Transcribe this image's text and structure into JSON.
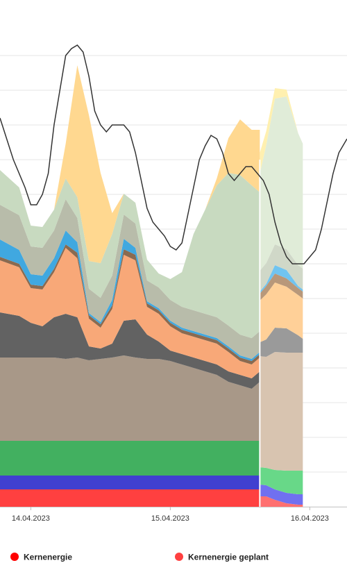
{
  "chart_data": {
    "type": "area",
    "stacked": true,
    "x_unit": "hours",
    "x_ticks": [
      {
        "label": "14.04.2023",
        "hour": 0
      },
      {
        "label": "15.04.2023",
        "hour": 24
      },
      {
        "label": "16.04.2023",
        "hour": 48
      }
    ],
    "xlim": [
      -5.3,
      54.4
    ],
    "ylim": [
      0,
      70
    ],
    "grid": true,
    "plan_start_hour": 39.4,
    "plan_end_hour": 46.8,
    "x": [
      -5.3,
      -2,
      0,
      2,
      4,
      6,
      8,
      10,
      12,
      14,
      16,
      18,
      20,
      22,
      24,
      26,
      28,
      30,
      32,
      34,
      36,
      38,
      39.4
    ],
    "series": [
      {
        "name": "Kernenergie",
        "color": "#ff4040",
        "values": [
          2.5,
          2.5,
          2.5,
          2.5,
          2.5,
          2.5,
          2.5,
          2.5,
          2.5,
          2.5,
          2.5,
          2.5,
          2.5,
          2.5,
          2.5,
          2.5,
          2.5,
          2.5,
          2.5,
          2.5,
          2.5,
          2.5,
          2.5
        ]
      },
      {
        "color": "#4040d0",
        "values": [
          2,
          2,
          2,
          2,
          2,
          2,
          2,
          2,
          2,
          2,
          2,
          2,
          2,
          2,
          2,
          2,
          2,
          2,
          2,
          2,
          2,
          2,
          2
        ]
      },
      {
        "color": "#42b060",
        "values": [
          5,
          5,
          5,
          5,
          5,
          5,
          5,
          5,
          5,
          5,
          5,
          5,
          5,
          5,
          5,
          5,
          5,
          5,
          5,
          5,
          5,
          5,
          5
        ]
      },
      {
        "color": "#a89888",
        "values": [
          12,
          12,
          12,
          12,
          12,
          11.8,
          12,
          11.6,
          11.8,
          12,
          12.3,
          12,
          11.8,
          11.8,
          11.5,
          11,
          10.5,
          10,
          9.5,
          8.5,
          8,
          7.5,
          8.5
        ]
      },
      {
        "color": "#626262",
        "values": [
          6.5,
          6,
          5,
          4.5,
          5.8,
          6.5,
          5.8,
          2,
          1.5,
          2,
          5,
          5.5,
          3.5,
          2.5,
          1.5,
          1.5,
          1.5,
          1.5,
          1.5,
          1.5,
          1.5,
          1.5,
          1.5
        ]
      },
      {
        "color": "#f8a878",
        "values": [
          7.5,
          7,
          5,
          5.3,
          6.5,
          9.5,
          8.5,
          4,
          3,
          5,
          9.5,
          8.5,
          4,
          4,
          3.5,
          3,
          3,
          3,
          3,
          2.8,
          2,
          2,
          2
        ]
      },
      {
        "color": "#8a6a50",
        "values": [
          0.5,
          0.5,
          0.5,
          0.5,
          0.5,
          0.5,
          0.8,
          0.5,
          0.5,
          0.5,
          0.8,
          0.8,
          0.5,
          0.5,
          0.5,
          0.5,
          0.5,
          0.5,
          0.5,
          0.5,
          0.5,
          0.5,
          0.5
        ]
      },
      {
        "color": "#40a8e0",
        "values": [
          2.5,
          2,
          1.5,
          1.5,
          1.5,
          2,
          1.5,
          0.3,
          0.3,
          0.8,
          1.5,
          1,
          0.3,
          0.3,
          0.3,
          0.3,
          0.3,
          0.3,
          0.3,
          0.3,
          0.3,
          0.3,
          0.3
        ]
      },
      {
        "color": "#b8bcaa",
        "values": [
          5,
          5,
          4,
          4,
          4,
          4.5,
          3.5,
          3.5,
          3.5,
          3.5,
          3.5,
          3.5,
          3,
          3,
          3,
          3,
          3,
          3,
          3,
          3,
          3,
          3,
          3
        ]
      },
      {
        "color": "#c8dac0",
        "values": [
          5,
          4,
          3,
          3,
          3,
          3,
          3,
          4,
          5,
          6,
          3,
          3,
          3,
          2,
          3,
          5,
          11,
          15,
          19,
          22,
          23,
          22,
          20
        ]
      },
      {
        "color": "#ffd890",
        "values": [
          0,
          0,
          0,
          0,
          0,
          5,
          19,
          21,
          13,
          3,
          0,
          0,
          0,
          0,
          0,
          0,
          0,
          0,
          1,
          5,
          8,
          8,
          9
        ]
      }
    ],
    "planned_series": [
      {
        "name": "Kernenergie geplant",
        "color": "#ff7070"
      },
      {
        "color": "#7070f0"
      },
      {
        "color": "#68d888"
      },
      {
        "color": "#d8c4b0"
      },
      {
        "color": "#9a9a9a"
      },
      {
        "color": "#ffd098"
      },
      {
        "color": "#b8987a"
      },
      {
        "color": "#70c4f0"
      },
      {
        "color": "#d0d8c8"
      },
      {
        "color": "#e0ecd8"
      },
      {
        "color": "#fff0b0"
      }
    ],
    "planned_x": [
      39.4,
      40.5,
      42,
      44,
      46,
      46.8
    ],
    "planned_values": [
      [
        1.5,
        1.5,
        1,
        0.5,
        0.3,
        0.3
      ],
      [
        1.7,
        1.6,
        1.5,
        1.5,
        1.5,
        1.5
      ],
      [
        2.5,
        2.5,
        2.8,
        3.2,
        3.4,
        3.4
      ],
      [
        16,
        16,
        17,
        17,
        17,
        17
      ],
      [
        2,
        2.5,
        3.5,
        3.5,
        2.5,
        2
      ],
      [
        6,
        6.5,
        6.5,
        6,
        5.8,
        5.8
      ],
      [
        1,
        1.2,
        1.3,
        1.2,
        1,
        1
      ],
      [
        0.3,
        0.3,
        1.2,
        1.2,
        0.3,
        0.3
      ],
      [
        3,
        3,
        3,
        3,
        3,
        3
      ],
      [
        14,
        17,
        21,
        22,
        19,
        18
      ],
      [
        3,
        2,
        1.5,
        1,
        0,
        0
      ]
    ],
    "demand_line": {
      "color": "#333333",
      "x": [
        -5.3,
        -3,
        -1,
        0,
        1,
        2,
        3,
        4,
        5,
        6,
        7,
        8,
        9,
        10,
        11,
        12,
        13,
        14,
        15,
        16,
        17,
        18,
        19,
        20,
        21,
        22,
        23,
        24,
        25,
        26,
        27,
        28,
        29,
        30,
        31,
        32,
        33,
        34,
        35,
        36,
        37,
        38,
        39,
        40,
        41,
        42,
        43,
        44,
        45,
        46,
        47,
        48,
        49,
        50,
        51,
        52,
        53,
        54.4
      ],
      "values": [
        56,
        50,
        46,
        43.5,
        43.5,
        45,
        48,
        55,
        60,
        65,
        66,
        66.5,
        65.5,
        62,
        57,
        55,
        54,
        55,
        55,
        55,
        54,
        51,
        47,
        43,
        41,
        40,
        39,
        37.5,
        37,
        38,
        42,
        46,
        50,
        52,
        53.5,
        53,
        51,
        48,
        47,
        48,
        49,
        49,
        48,
        47,
        45,
        41,
        38,
        36,
        35,
        35,
        35,
        36,
        37,
        40,
        44,
        48,
        51,
        53
      ]
    },
    "legend": [
      {
        "label": "Kernenergie",
        "color": "#ff0000"
      },
      {
        "label": "Kernenergie geplant",
        "color": "#ff4040"
      }
    ],
    "legend_position": "bottom"
  }
}
